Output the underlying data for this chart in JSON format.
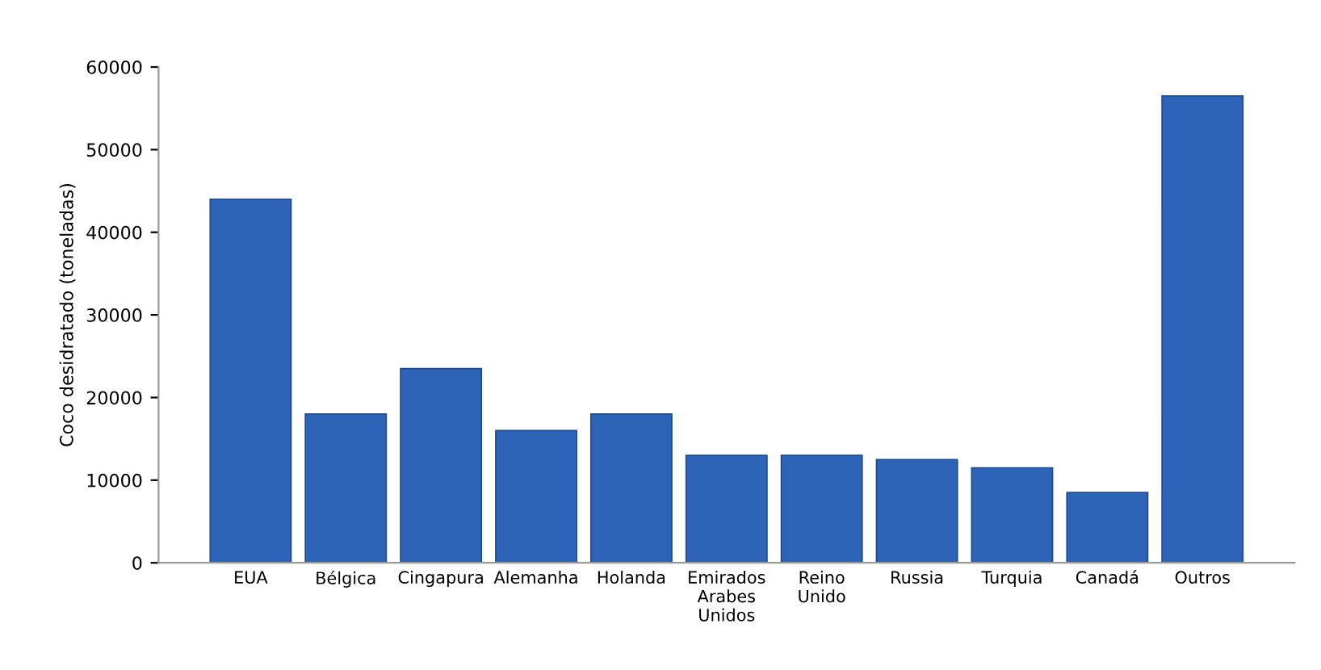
{
  "chart_data": {
    "type": "bar",
    "ylabel": "Coco desidratado (toneladas)",
    "categories": [
      "EUA",
      "Bélgica",
      "Cingapura",
      "Alemanha",
      "Holanda",
      "Emirados\nArabes\nUnidos",
      "Reino\nUnido",
      "Russia",
      "Turquia",
      "Canadá",
      "Outros"
    ],
    "values": [
      44000,
      18000,
      23500,
      16000,
      18000,
      13000,
      13000,
      12500,
      11500,
      8500,
      56500
    ],
    "color": "#2e64b8",
    "ylim": [
      0,
      60000
    ],
    "yticks": [
      0,
      10000,
      20000,
      30000,
      40000,
      50000,
      60000
    ],
    "grid": false,
    "legend": false
  }
}
